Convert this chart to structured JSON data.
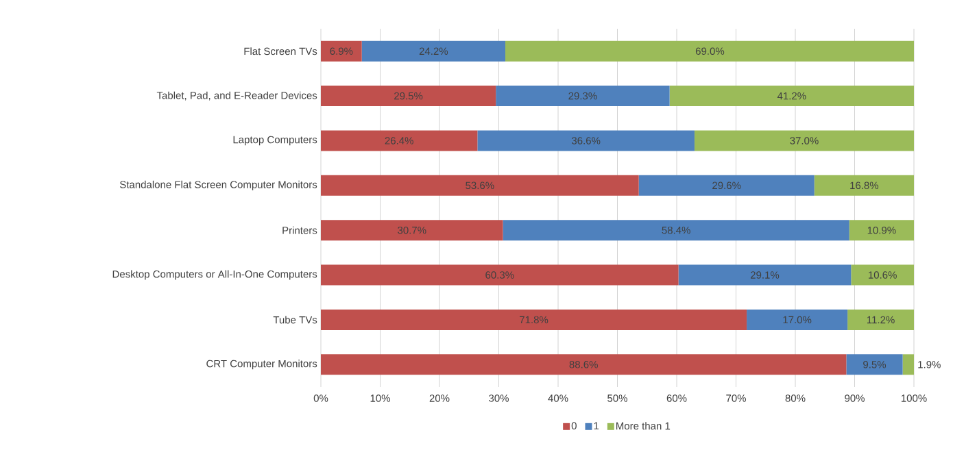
{
  "chart_data": {
    "type": "bar",
    "orientation": "horizontal",
    "stacked": true,
    "categories": [
      "Flat Screen TVs",
      "Tablet, Pad, and E-Reader Devices",
      "Laptop Computers",
      "Standalone Flat Screen Computer Monitors",
      "Printers",
      "Desktop Computers or All-In-One Computers",
      "Tube TVs",
      "CRT Computer Monitors"
    ],
    "series": [
      {
        "name": "0",
        "color": "#c0504d",
        "values": [
          6.9,
          29.5,
          26.4,
          53.6,
          30.7,
          60.3,
          71.8,
          88.6
        ],
        "value_labels": [
          "6.9%",
          "29.5%",
          "26.4%",
          "53.6%",
          "30.7%",
          "60.3%",
          "71.8%",
          "88.6%"
        ]
      },
      {
        "name": "1",
        "color": "#4f81bd",
        "values": [
          24.2,
          29.3,
          36.6,
          29.6,
          58.4,
          29.1,
          17.0,
          9.5
        ],
        "value_labels": [
          "24.2%",
          "29.3%",
          "36.6%",
          "29.6%",
          "58.4%",
          "29.1%",
          "17.0%",
          "9.5%"
        ]
      },
      {
        "name": "More than 1",
        "color": "#9bbb59",
        "values": [
          69.0,
          41.2,
          37.0,
          16.8,
          10.9,
          10.6,
          11.2,
          1.9
        ],
        "value_labels": [
          "69.0%",
          "41.2%",
          "37.0%",
          "16.8%",
          "10.9%",
          "10.6%",
          "11.2%",
          "1.9%"
        ]
      }
    ],
    "xlim": [
      0,
      100
    ],
    "xticks": [
      {
        "value": 0,
        "label": "0%"
      },
      {
        "value": 10,
        "label": "10%"
      },
      {
        "value": 20,
        "label": "20%"
      },
      {
        "value": 30,
        "label": "30%"
      },
      {
        "value": 40,
        "label": "40%"
      },
      {
        "value": 50,
        "label": "50%"
      },
      {
        "value": 60,
        "label": "60%"
      },
      {
        "value": 70,
        "label": "70%"
      },
      {
        "value": 80,
        "label": "80%"
      },
      {
        "value": 90,
        "label": "90%"
      },
      {
        "value": 100,
        "label": "100%"
      }
    ],
    "grid": "x",
    "legend": "bottom"
  }
}
